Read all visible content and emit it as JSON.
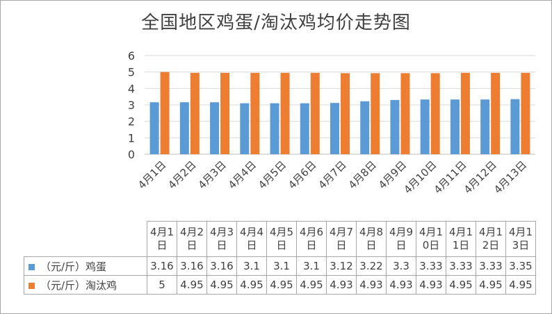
{
  "chart_data": {
    "type": "bar",
    "title": "全国地区鸡蛋/淘汰鸡均价走势图",
    "categories": [
      "4月1日",
      "4月2日",
      "4月3日",
      "4月4日",
      "4月5日",
      "4月6日",
      "4月7日",
      "4月8日",
      "4月9日",
      "4月10日",
      "4月11日",
      "4月12日",
      "4月13日"
    ],
    "header_lines": [
      [
        "4月1",
        "日"
      ],
      [
        "4月2",
        "日"
      ],
      [
        "4月3",
        "日"
      ],
      [
        "4月4",
        "日"
      ],
      [
        "4月5",
        "日"
      ],
      [
        "4月6",
        "日"
      ],
      [
        "4月7",
        "日"
      ],
      [
        "4月8",
        "日"
      ],
      [
        "4月9",
        "日"
      ],
      [
        "4月1",
        "0日"
      ],
      [
        "4月1",
        "1日"
      ],
      [
        "4月1",
        "2日"
      ],
      [
        "4月1",
        "3日"
      ]
    ],
    "series": [
      {
        "name": "（元/斤）鸡蛋",
        "color": "#5b9bd5",
        "values": [
          3.16,
          3.16,
          3.16,
          3.1,
          3.1,
          3.1,
          3.12,
          3.22,
          3.3,
          3.33,
          3.33,
          3.33,
          3.35
        ]
      },
      {
        "name": "（元/斤）淘汰鸡",
        "color": "#ed7d31",
        "values": [
          5,
          4.95,
          4.95,
          4.95,
          4.95,
          4.95,
          4.93,
          4.93,
          4.93,
          4.93,
          4.95,
          4.95,
          4.95
        ]
      }
    ],
    "series_display": [
      [
        "3.16",
        "3.16",
        "3.16",
        "3.1",
        "3.1",
        "3.1",
        "3.12",
        "3.22",
        "3.3",
        "3.33",
        "3.33",
        "3.33",
        "3.35"
      ],
      [
        "5",
        "4.95",
        "4.95",
        "4.95",
        "4.95",
        "4.95",
        "4.93",
        "4.93",
        "4.93",
        "4.93",
        "4.95",
        "4.95",
        "4.95"
      ]
    ],
    "ylim": [
      0,
      6
    ],
    "yticks": [
      "0",
      "1",
      "2",
      "3",
      "4",
      "5",
      "6"
    ],
    "grid": true,
    "legend": "data-table"
  }
}
